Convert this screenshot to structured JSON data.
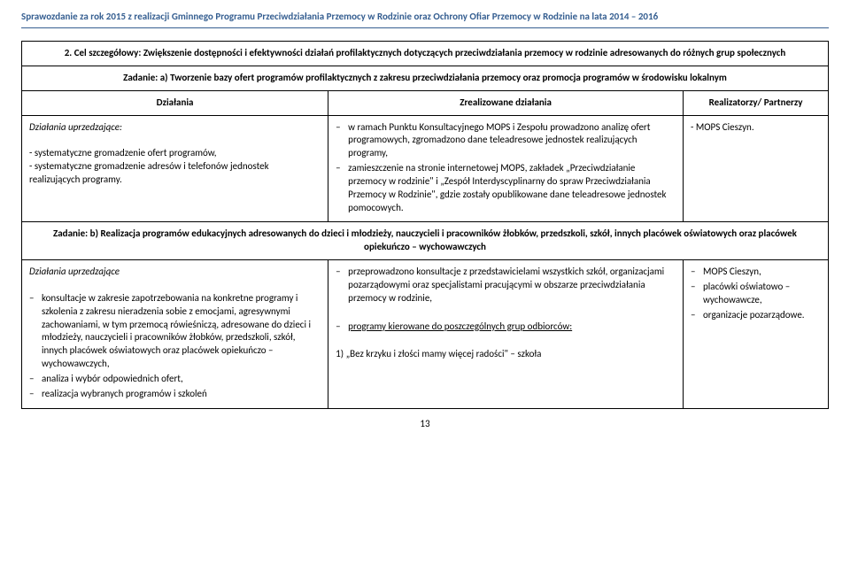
{
  "header": "Sprawozdanie za rok 2015 z realizacji Gminnego Programu Przeciwdziałania Przemocy w Rodzinie oraz Ochrony Ofiar Przemocy w Rodzinie na lata 2014 – 2016",
  "goal_row": "2. Cel szczegółowy: Zwiększenie dostępności i efektywności działań profilaktycznych dotyczących przeciwdziałania przemocy w rodzinie adresowanych do różnych grup społecznych",
  "task_a": "Zadanie: a) Tworzenie bazy ofert programów profilaktycznych z zakresu przeciwdziałania przemocy oraz promocja programów w środowisku lokalnym",
  "headers": {
    "col1": "Działania",
    "col2": "Zrealizowane działania",
    "col3": "Realizatorzy/ Partnerzy"
  },
  "row_a": {
    "pre_label": "Działania uprzedzające:",
    "col1_items": [
      "- systematyczne gromadzenie ofert programów,",
      "- systematyczne gromadzenie adresów i telefonów jednostek realizujących programy."
    ],
    "col2_items": [
      "w ramach Punktu Konsultacyjnego MOPS i Zespołu prowadzono analizę ofert programowych, zgromadzono dane teleadresowe jednostek realizujących programy,",
      "zamieszczenie na stronie internetowej MOPS, zakładek „Przeciwdziałanie przemocy w rodzinie\" i „Zespół Interdyscyplinarny do spraw Przeciwdziałania Przemocy w Rodzinie\", gdzie zostały opublikowane dane teleadresowe jednostek pomocowych."
    ],
    "col3": "- MOPS Cieszyn."
  },
  "task_b": "Zadanie: b) Realizacja programów edukacyjnych adresowanych do dzieci i młodzieży, nauczycieli i pracowników żłobków, przedszkoli, szkół, innych placówek oświatowych oraz placówek opiekuńczo – wychowawczych",
  "row_b": {
    "pre_label": "Działania uprzedzające",
    "col1_items": [
      "konsultacje w zakresie zapotrzebowania na konkretne programy i szkolenia z zakresu nieradzenia sobie z emocjami, agresywnymi zachowaniami, w tym  przemocą rówieśniczą, adresowane do dzieci i młodzieży, nauczycieli i pracowników żłobków, przedszkoli, szkół, innych placówek oświatowych oraz placówek opiekuńczo – wychowawczych,",
      "analiza i wybór odpowiednich ofert,",
      "realizacja wybranych programów i szkoleń"
    ],
    "col2_item1": "przeprowadzono konsultacje z przedstawicielami wszystkich szkół, organizacjami pozarządowymi oraz specjalistami pracującymi w obszarze przeciwdziałania przemocy w rodzinie,",
    "col2_item2": "programy kierowane do poszczególnych grup odbiorców:",
    "col2_line3": "1) „Bez krzyku i złości mamy więcej radości\" – szkoła",
    "col3_items": [
      "MOPS Cieszyn,",
      "placówki oświatowo – wychowawcze,",
      "organizacje pozarządowe."
    ]
  },
  "page_number": "13"
}
